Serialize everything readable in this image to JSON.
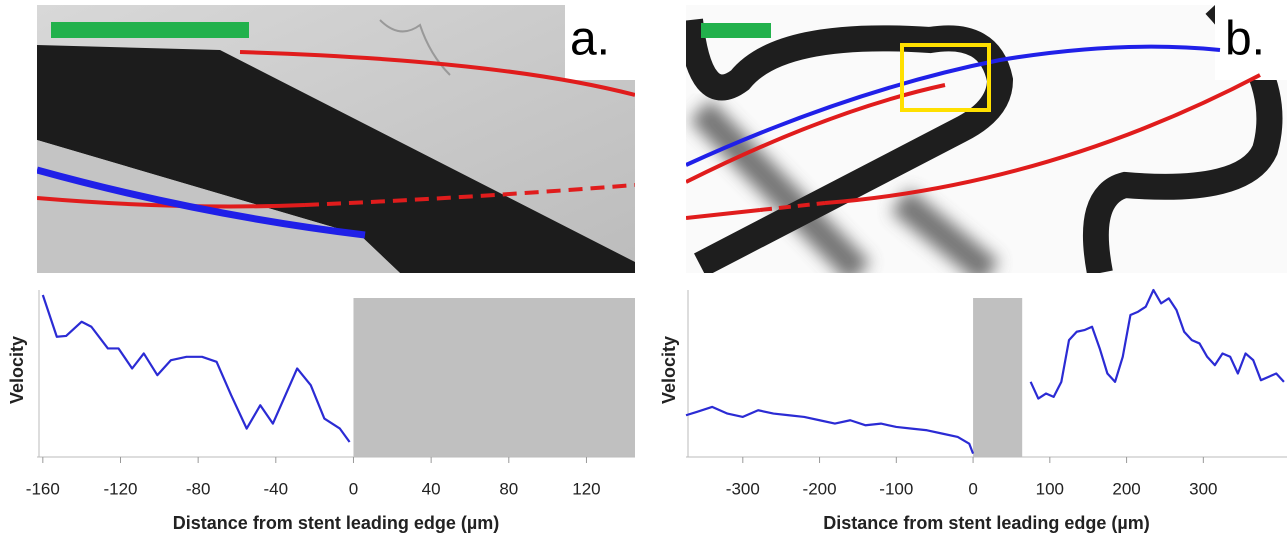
{
  "chart_data": [
    {
      "type": "line",
      "annotation": "a.",
      "xlabel": "Distance from stent leading edge (µm)",
      "ylabel": "Velocity",
      "x": [
        -160,
        -152.8,
        -148,
        -140,
        -135,
        -126.5,
        -121,
        -114,
        -108,
        -101,
        -94,
        -86,
        -78,
        -70.5,
        -63,
        -55,
        -48,
        -41.5,
        -29,
        -22,
        -15,
        -7,
        -2
      ],
      "values": [
        97,
        72,
        72.5,
        81,
        78,
        65,
        65,
        53,
        62,
        49,
        58,
        60,
        60,
        57,
        37,
        17,
        31,
        20,
        53,
        43,
        23,
        17,
        9
      ],
      "color": "#2b2bd4",
      "xlim": [
        -163,
        145
      ],
      "ylim": [
        0,
        100
      ],
      "xticks": [
        -160,
        -120,
        -80,
        -40,
        0,
        40,
        80,
        120
      ],
      "shaded_x": [
        0,
        145
      ],
      "shade_color": "#c0c0c0"
    },
    {
      "type": "line",
      "annotation": "b.",
      "xlabel": "Distance from stent leading edge (µm)",
      "ylabel": "Velocity",
      "x": [
        -374,
        -360,
        -340,
        -320,
        -300,
        -280,
        -260,
        -240,
        -220,
        -200,
        -180,
        -160,
        -140,
        -120,
        -100,
        -80,
        -60,
        -40,
        -20,
        -5,
        0,
        40,
        75,
        85,
        95,
        105,
        115,
        125,
        135,
        145,
        155,
        165,
        175,
        185,
        195,
        205,
        215,
        225,
        235,
        245,
        255,
        265,
        275,
        285,
        295,
        305,
        315,
        325,
        335,
        345,
        355,
        365,
        375,
        385,
        395,
        405
      ],
      "values": [
        25,
        27,
        30,
        26,
        24,
        28,
        26,
        25,
        24,
        22,
        20,
        22,
        19,
        20,
        18,
        17,
        16,
        14,
        12,
        8,
        2,
        null,
        45,
        35,
        38,
        36,
        45,
        70,
        75,
        76,
        78,
        65,
        50,
        45,
        60,
        85,
        87,
        90,
        100,
        92,
        95,
        88,
        75,
        70,
        68,
        60,
        55,
        62,
        60,
        50,
        62,
        58,
        46,
        48,
        50,
        45
      ],
      "color": "#2b2bd4",
      "xlim": [
        -374,
        409
      ],
      "ylim": [
        0,
        100
      ],
      "xticks": [
        -300,
        -200,
        -100,
        0,
        100,
        200,
        300
      ],
      "shaded_x": [
        0,
        64
      ],
      "shade_color": "#c0c0c0"
    }
  ]
}
